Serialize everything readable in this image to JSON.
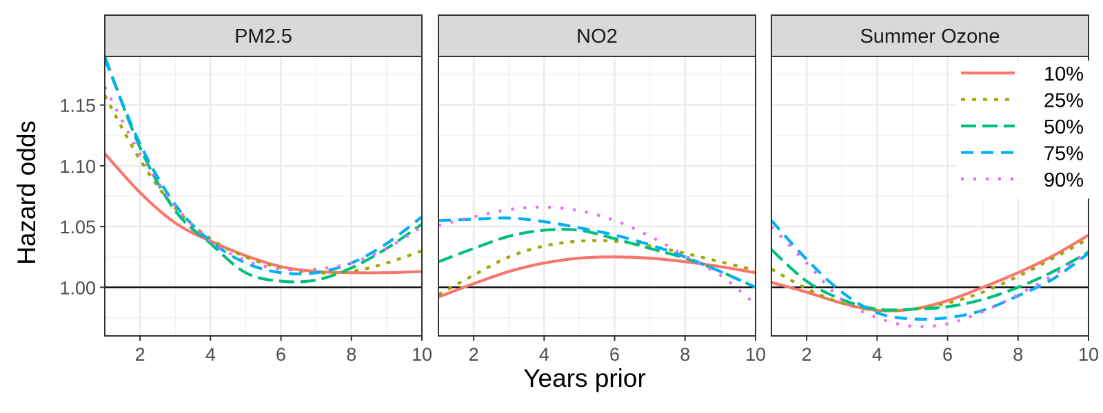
{
  "chart_data": {
    "type": "line",
    "facets": [
      "PM2.5",
      "NO2",
      "Summer Ozone"
    ],
    "xlabel": "Years prior",
    "ylabel": "Hazard odds",
    "xlim": [
      1,
      10
    ],
    "ylim": [
      0.96,
      1.19
    ],
    "x_ticks": [
      2,
      4,
      6,
      8,
      10
    ],
    "y_ticks": [
      1.0,
      1.05,
      1.1,
      1.15
    ],
    "y_tick_labels": [
      "1.00",
      "1.05",
      "1.10",
      "1.15"
    ],
    "reference_line": 1.0,
    "grid": true,
    "legend_position": "top-right (inside Summer Ozone panel)",
    "series": [
      {
        "name": "10%",
        "color": "#F8766D",
        "dash": "solid",
        "values": {
          "PM2.5": {
            "x": [
              1,
              2,
              3,
              4,
              5,
              6,
              7,
              8,
              9,
              10
            ],
            "y": [
              1.11,
              1.078,
              1.053,
              1.038,
              1.026,
              1.017,
              1.013,
              1.012,
              1.012,
              1.013
            ]
          },
          "NO2": {
            "x": [
              1,
              2,
              3,
              4,
              5,
              6,
              7,
              8,
              9,
              10
            ],
            "y": [
              0.992,
              1.003,
              1.013,
              1.02,
              1.024,
              1.025,
              1.024,
              1.021,
              1.017,
              1.012
            ]
          },
          "Summer Ozone": {
            "x": [
              1,
              2,
              3,
              4,
              5,
              6,
              7,
              8,
              9,
              10
            ],
            "y": [
              1.004,
              0.996,
              0.987,
              0.981,
              0.982,
              0.989,
              1.0,
              1.012,
              1.026,
              1.043
            ]
          }
        }
      },
      {
        "name": "25%",
        "color": "#A3A500",
        "dash": "dotted",
        "values": {
          "PM2.5": {
            "x": [
              1,
              2,
              3,
              4,
              5,
              6,
              7,
              8,
              9,
              10
            ],
            "y": [
              1.158,
              1.105,
              1.065,
              1.04,
              1.025,
              1.016,
              1.012,
              1.013,
              1.02,
              1.03
            ]
          },
          "NO2": {
            "x": [
              1,
              2,
              3,
              4,
              5,
              6,
              7,
              8,
              9,
              10
            ],
            "y": [
              0.994,
              1.01,
              1.025,
              1.034,
              1.038,
              1.038,
              1.034,
              1.028,
              1.021,
              1.014
            ]
          },
          "Summer Ozone": {
            "x": [
              1,
              2,
              3,
              4,
              5,
              6,
              7,
              8,
              9,
              10
            ],
            "y": [
              1.015,
              0.999,
              0.987,
              0.981,
              0.982,
              0.987,
              0.996,
              1.009,
              1.024,
              1.04
            ]
          }
        }
      },
      {
        "name": "50%",
        "color": "#00BF7D",
        "dash": "longdash",
        "values": {
          "PM2.5": {
            "x": [
              1,
              2,
              3,
              4,
              5,
              6,
              7,
              8,
              9,
              10
            ],
            "y": [
              1.19,
              1.115,
              1.063,
              1.036,
              1.012,
              1.005,
              1.006,
              1.016,
              1.032,
              1.052
            ]
          },
          "NO2": {
            "x": [
              1,
              2,
              3,
              4,
              5,
              6,
              7,
              8,
              9,
              10
            ],
            "y": [
              1.021,
              1.032,
              1.042,
              1.047,
              1.047,
              1.04,
              1.032,
              1.024,
              1.013,
              1.0
            ]
          },
          "Summer Ozone": {
            "x": [
              1,
              2,
              3,
              4,
              5,
              6,
              7,
              8,
              9,
              10
            ],
            "y": [
              1.031,
              1.005,
              0.99,
              0.982,
              0.982,
              0.984,
              0.99,
              1.0,
              1.013,
              1.029
            ]
          }
        }
      },
      {
        "name": "75%",
        "color": "#00B0F6",
        "dash": "dashed",
        "values": {
          "PM2.5": {
            "x": [
              1,
              2,
              3,
              4,
              5,
              6,
              7,
              8,
              9,
              10
            ],
            "y": [
              1.188,
              1.118,
              1.068,
              1.038,
              1.02,
              1.012,
              1.012,
              1.02,
              1.036,
              1.058
            ]
          },
          "NO2": {
            "x": [
              1,
              2,
              3,
              4,
              5,
              6,
              7,
              8,
              9,
              10
            ],
            "y": [
              1.055,
              1.056,
              1.057,
              1.054,
              1.049,
              1.043,
              1.035,
              1.025,
              1.013,
              1.0
            ]
          },
          "Summer Ozone": {
            "x": [
              1,
              2,
              3,
              4,
              5,
              6,
              7,
              8,
              9,
              10
            ],
            "y": [
              1.055,
              1.023,
              0.996,
              0.979,
              0.974,
              0.975,
              0.981,
              0.993,
              1.007,
              1.028
            ]
          }
        }
      },
      {
        "name": "90%",
        "color": "#E76BF3",
        "dash": "dotted-sparse",
        "values": {
          "PM2.5": {
            "x": [
              1,
              2,
              3,
              4,
              5,
              6,
              7,
              8,
              9,
              10
            ],
            "y": [
              1.165,
              1.11,
              1.067,
              1.038,
              1.022,
              1.015,
              1.015,
              1.02,
              1.032,
              1.05
            ]
          },
          "NO2": {
            "x": [
              1,
              2,
              3,
              4,
              5,
              6,
              7,
              8,
              9,
              10
            ],
            "y": [
              1.051,
              1.058,
              1.064,
              1.066,
              1.063,
              1.055,
              1.042,
              1.026,
              1.01,
              0.986
            ]
          },
          "Summer Ozone": {
            "x": [
              1,
              2,
              3,
              4,
              5,
              6,
              7,
              8,
              9,
              10
            ],
            "y": [
              1.05,
              1.02,
              0.99,
              0.975,
              0.968,
              0.97,
              0.98,
              0.994,
              1.01,
              1.03
            ]
          }
        }
      }
    ]
  }
}
